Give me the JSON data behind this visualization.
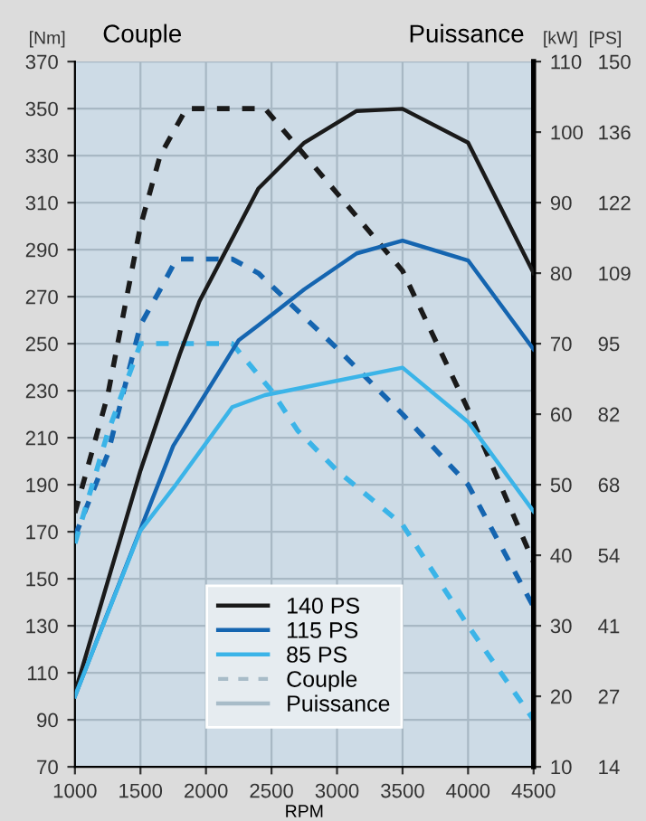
{
  "chart_data": {
    "type": "line",
    "ylabel": "Couple",
    "y2label": "Puissance",
    "xlabel": "RPM",
    "annotations": [
      "[Nm]",
      "[kW]",
      "[PS]",
      "Couple",
      "Puissance"
    ],
    "xlim": [
      1000,
      4500
    ],
    "xticks": [
      1000,
      1500,
      2000,
      2500,
      3000,
      3500,
      4000,
      4500
    ],
    "ylim": [
      70,
      370
    ],
    "yticks": [
      70,
      90,
      110,
      130,
      150,
      170,
      190,
      210,
      230,
      250,
      270,
      290,
      310,
      330,
      350,
      370
    ],
    "y2lim": [
      10,
      110
    ],
    "y2ticks": [
      10,
      20,
      30,
      40,
      50,
      60,
      70,
      80,
      90,
      100,
      110
    ],
    "y3lim": [
      13.6,
      149.6
    ],
    "y3ticks": [
      {
        "value": 13.6,
        "label": "14"
      },
      {
        "value": 27.2,
        "label": "27"
      },
      {
        "value": 40.8,
        "label": "41"
      },
      {
        "value": 54.4,
        "label": "54"
      },
      {
        "value": 68,
        "label": "68"
      },
      {
        "value": 81.6,
        "label": "82"
      },
      {
        "value": 95.2,
        "label": "95"
      },
      {
        "value": 108.8,
        "label": "109"
      },
      {
        "value": 122.4,
        "label": "122"
      },
      {
        "value": 136,
        "label": "136"
      },
      {
        "value": 149.6,
        "label": "150"
      }
    ],
    "grid": true,
    "legend": "bottom",
    "series": [
      {
        "name": "140 PS",
        "color": "#1a1a1a",
        "axis": "y2",
        "line_style": "solid",
        "x": [
          1000,
          1500,
          1800,
          1950,
          2400,
          2750,
          3150,
          3500,
          4000,
          4500
        ],
        "values": [
          20.5,
          52,
          68.5,
          76,
          92,
          98.5,
          103,
          103.3,
          98.5,
          80
        ]
      },
      {
        "name": "115 PS",
        "color": "#1565b0",
        "axis": "y2",
        "line_style": "solid",
        "x": [
          1000,
          1750,
          2250,
          2400,
          2750,
          3150,
          3500,
          4000,
          4500
        ],
        "values": [
          20,
          55.5,
          70.5,
          72.6,
          77.7,
          82.8,
          84.6,
          81.8,
          69.2
        ]
      },
      {
        "name": "85 PS",
        "color": "#3bb4e8",
        "axis": "y2",
        "line_style": "solid",
        "x": [
          1000,
          1500,
          1750,
          2200,
          2450,
          3500,
          4000,
          4500
        ],
        "values": [
          20,
          43.5,
          49.5,
          61,
          62.7,
          66.6,
          58.9,
          46.2
        ]
      },
      {
        "color": "#1a1a1a",
        "line_style": "dashed",
        "x": [
          1000,
          1250,
          1500,
          1650,
          1850,
          2450,
          3000,
          3500,
          4000,
          4500
        ],
        "values": [
          178,
          228,
          300,
          330,
          350,
          350,
          314,
          281,
          222,
          157
        ]
      },
      {
        "color": "#1565b0",
        "line_style": "dashed",
        "x": [
          1000,
          1250,
          1500,
          1650,
          1775,
          2200,
          2400,
          3000,
          3500,
          4000,
          4500
        ],
        "values": [
          168,
          203,
          258,
          273,
          286,
          286,
          280,
          248,
          220,
          190,
          138
        ]
      },
      {
        "color": "#3bb4e8",
        "line_style": "dashed",
        "x": [
          1000,
          1250,
          1500,
          2200,
          2500,
          2700,
          3000,
          3500,
          4000,
          4500
        ],
        "values": [
          165,
          212,
          250,
          250,
          230,
          213,
          196,
          173,
          130,
          90
        ]
      }
    ]
  }
}
